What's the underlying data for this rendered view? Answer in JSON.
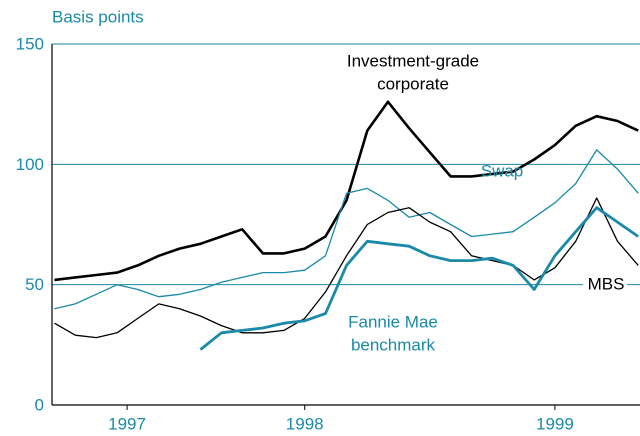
{
  "chart_data": {
    "type": "line",
    "ylabel": "Basis points",
    "x": [
      1997.5,
      1997.583,
      1997.667,
      1997.75,
      1997.833,
      1997.917,
      1998.0,
      1998.083,
      1998.167,
      1998.25,
      1998.333,
      1998.417,
      1998.5,
      1998.583,
      1998.667,
      1998.75,
      1998.833,
      1998.917,
      1999.0,
      1999.083,
      1999.167,
      1999.25,
      1999.333,
      1999.417,
      1999.5,
      1999.583,
      1999.667,
      1999.75,
      1999.833
    ],
    "xlim": [
      1997.49,
      1999.84
    ],
    "xticks": [
      {
        "value": 1997.79,
        "label": "1997"
      },
      {
        "value": 1998.5,
        "label": "1998"
      },
      {
        "value": 1999.5,
        "label": "1999"
      }
    ],
    "ylim": [
      0,
      150
    ],
    "yticks": [
      0,
      50,
      100,
      150
    ],
    "grid": true,
    "series": [
      {
        "color": "#000000",
        "width": 2.6,
        "values": [
          52,
          53,
          54,
          55,
          58,
          62,
          65,
          67,
          70,
          73,
          63,
          63,
          65,
          70,
          85,
          114,
          126,
          115,
          105,
          95,
          95,
          96,
          97,
          102,
          108,
          116,
          120,
          118,
          114
        ]
      },
      {
        "color": "#1a8aa8",
        "width": 1.3,
        "values": [
          40,
          42,
          46,
          50,
          48,
          45,
          46,
          48,
          51,
          53,
          55,
          55,
          56,
          62,
          88,
          90,
          85,
          78,
          80,
          75,
          70,
          71,
          72,
          78,
          84,
          92,
          106,
          98,
          88
        ]
      },
      {
        "color": "#000000",
        "width": 1.3,
        "values": [
          34,
          29,
          28,
          30,
          36,
          42,
          40,
          37,
          33,
          30,
          30,
          31,
          36,
          47,
          62,
          75,
          80,
          82,
          76,
          72,
          62,
          60,
          58,
          52,
          57,
          68,
          86,
          68,
          58
        ]
      },
      {
        "color": "#1a8aa8",
        "width": 2.8,
        "values": [
          null,
          null,
          null,
          null,
          null,
          null,
          null,
          23,
          30,
          31,
          32,
          34,
          35,
          38,
          58,
          68,
          67,
          66,
          62,
          60,
          60,
          61,
          58,
          48,
          62,
          72,
          82,
          76,
          70
        ]
      }
    ],
    "annotations": [
      "Investment-grade",
      "corporate",
      "Swap",
      "Fannie Mae",
      "benchmark",
      "MBS"
    ]
  }
}
